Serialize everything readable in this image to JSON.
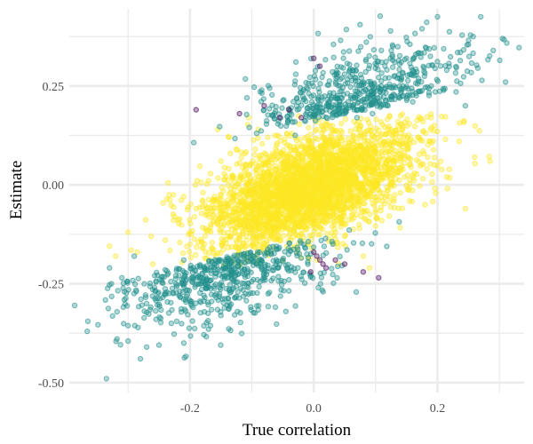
{
  "chart_data": {
    "type": "scatter",
    "title": "",
    "xlabel": "True correlation",
    "ylabel": "Estimate",
    "xlim": [
      -0.395,
      0.34
    ],
    "ylim": [
      -0.525,
      0.445
    ],
    "x_ticks": [
      {
        "value": -0.2,
        "label": "-0.2"
      },
      {
        "value": 0.0,
        "label": "0.0"
      },
      {
        "value": 0.2,
        "label": "0.2"
      }
    ],
    "x_minor_ticks": [
      -0.3,
      -0.1,
      0.1,
      0.3
    ],
    "y_ticks": [
      {
        "value": 0.25,
        "label": "0.25"
      },
      {
        "value": 0.0,
        "label": "0.00"
      },
      {
        "value": -0.25,
        "label": "-0.25"
      },
      {
        "value": -0.5,
        "label": "-0.50"
      }
    ],
    "y_minor_ticks": [
      0.375,
      0.125,
      -0.125,
      -0.375
    ],
    "grid": true,
    "legend": "none",
    "colors": {
      "group_a": "#440154",
      "group_b": "#21908C",
      "group_c": "#FDE725",
      "grid": "#ebebeb"
    },
    "series": [
      {
        "color": "#FDE725",
        "approx_count": 3200,
        "points": [
          [
            -0.33,
            -0.155
          ],
          [
            -0.3,
            -0.12
          ],
          [
            -0.285,
            -0.17
          ],
          [
            -0.26,
            -0.2
          ],
          [
            -0.24,
            -0.14
          ],
          [
            -0.225,
            -0.08
          ],
          [
            -0.21,
            -0.03
          ],
          [
            -0.19,
            -0.06
          ],
          [
            -0.18,
            -0.16
          ],
          [
            -0.17,
            0.01
          ],
          [
            -0.155,
            -0.1
          ],
          [
            -0.15,
            0.06
          ],
          [
            -0.135,
            -0.02
          ],
          [
            -0.125,
            0.09
          ],
          [
            -0.11,
            0.05
          ],
          [
            -0.1,
            -0.12
          ],
          [
            -0.09,
            0.14
          ],
          [
            -0.08,
            0.02
          ],
          [
            -0.06,
            0.1
          ],
          [
            -0.05,
            -0.19
          ],
          [
            -0.035,
            0.13
          ],
          [
            -0.02,
            0.04
          ],
          [
            0.0,
            0.17
          ],
          [
            0.015,
            -0.04
          ],
          [
            0.03,
            0.15
          ],
          [
            0.05,
            -0.13
          ],
          [
            0.065,
            0.16
          ],
          [
            0.08,
            -0.18
          ],
          [
            0.095,
            0.1
          ],
          [
            0.11,
            -0.09
          ],
          [
            0.125,
            0.14
          ],
          [
            0.14,
            -0.02
          ],
          [
            0.155,
            0.05
          ],
          [
            0.17,
            0.12
          ],
          [
            0.18,
            -0.05
          ],
          [
            0.195,
            0.15
          ],
          [
            0.215,
            0.02
          ],
          [
            0.235,
            0.11
          ],
          [
            0.26,
            0.07
          ],
          [
            0.285,
            0.06
          ],
          [
            -0.32,
            -0.18
          ],
          [
            0.245,
            -0.06
          ],
          [
            -0.105,
            0.17
          ],
          [
            0.09,
            -0.21
          ],
          [
            -0.155,
            0.14
          ],
          [
            0.04,
            -0.2
          ]
        ]
      },
      {
        "color": "#21908C",
        "approx_count": 1150,
        "points": [
          [
            -0.365,
            -0.345
          ],
          [
            -0.335,
            -0.49
          ],
          [
            -0.33,
            -0.21
          ],
          [
            -0.31,
            -0.235
          ],
          [
            -0.3,
            -0.395
          ],
          [
            -0.29,
            -0.18
          ],
          [
            -0.28,
            -0.44
          ],
          [
            -0.27,
            -0.3
          ],
          [
            -0.26,
            -0.265
          ],
          [
            -0.25,
            -0.405
          ],
          [
            -0.24,
            -0.215
          ],
          [
            -0.23,
            -0.35
          ],
          [
            -0.21,
            -0.19
          ],
          [
            -0.195,
            -0.31
          ],
          [
            -0.18,
            -0.245
          ],
          [
            -0.16,
            -0.2
          ],
          [
            -0.15,
            -0.33
          ],
          [
            -0.13,
            -0.215
          ],
          [
            -0.11,
            -0.275
          ],
          [
            -0.095,
            -0.185
          ],
          [
            -0.08,
            -0.22
          ],
          [
            -0.06,
            -0.195
          ],
          [
            -0.04,
            -0.24
          ],
          [
            -0.02,
            -0.185
          ],
          [
            -0.03,
            0.125
          ],
          [
            0.02,
            0.19
          ],
          [
            0.04,
            0.2
          ],
          [
            0.05,
            0.28
          ],
          [
            0.07,
            0.17
          ],
          [
            0.08,
            0.26
          ],
          [
            0.095,
            0.18
          ],
          [
            0.11,
            0.31
          ],
          [
            0.12,
            0.2
          ],
          [
            0.135,
            0.27
          ],
          [
            0.15,
            0.32
          ],
          [
            0.16,
            0.21
          ],
          [
            0.175,
            0.395
          ],
          [
            0.19,
            0.25
          ],
          [
            0.2,
            0.425
          ],
          [
            0.215,
            0.29
          ],
          [
            0.23,
            0.235
          ],
          [
            0.25,
            0.355
          ],
          [
            0.27,
            0.425
          ],
          [
            0.29,
            0.34
          ],
          [
            0.305,
            0.37
          ],
          [
            0.31,
            0.26
          ],
          [
            -0.17,
            -0.365
          ],
          [
            -0.27,
            -0.41
          ],
          [
            0.165,
            0.33
          ],
          [
            0.245,
            0.2
          ],
          [
            -0.21,
            -0.4
          ],
          [
            0.06,
            0.22
          ]
        ]
      },
      {
        "color": "#440154",
        "approx_count": 25,
        "points": [
          [
            -0.19,
            0.19
          ],
          [
            -0.12,
            0.18
          ],
          [
            -0.08,
            0.2
          ],
          [
            -0.055,
            0.17
          ],
          [
            -0.04,
            0.19
          ],
          [
            -0.02,
            0.17
          ],
          [
            0.0,
            0.32
          ],
          [
            0.01,
            0.3
          ],
          [
            0.0,
            -0.17
          ],
          [
            0.005,
            -0.18
          ],
          [
            0.01,
            -0.19
          ],
          [
            0.015,
            -0.2
          ],
          [
            0.02,
            -0.21
          ],
          [
            -0.005,
            -0.22
          ],
          [
            0.035,
            -0.19
          ],
          [
            0.05,
            -0.2
          ],
          [
            0.105,
            -0.235
          ],
          [
            0.08,
            -0.22
          ]
        ]
      }
    ]
  }
}
